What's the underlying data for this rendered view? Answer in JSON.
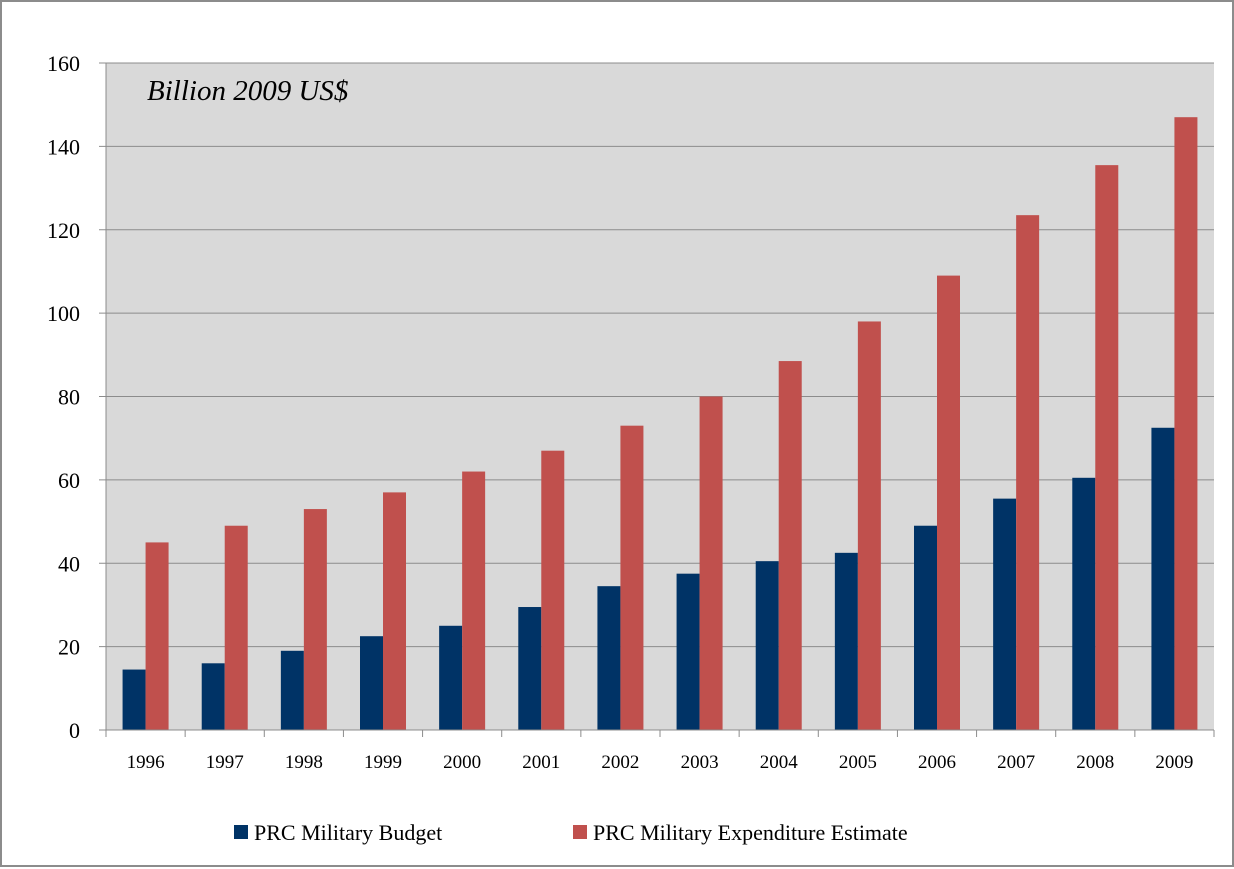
{
  "chart_data": {
    "type": "bar",
    "title": "",
    "unit_label": "Billion 2009 US$",
    "xlabel": "",
    "ylabel": "",
    "categories": [
      "1996",
      "1997",
      "1998",
      "1999",
      "2000",
      "2001",
      "2002",
      "2003",
      "2004",
      "2005",
      "2006",
      "2007",
      "2008",
      "2009"
    ],
    "series": [
      {
        "name": "PRC Military Budget",
        "color": "#003366",
        "values": [
          14.5,
          16,
          19,
          22.5,
          25,
          29.5,
          34.5,
          37.5,
          40.5,
          42.5,
          49,
          55.5,
          60.5,
          72.5
        ]
      },
      {
        "name": "PRC Military Expenditure Estimate",
        "color": "#c0504d",
        "values": [
          45,
          49,
          53,
          57,
          62,
          67,
          73,
          80,
          88.5,
          98,
          109,
          123.5,
          135.5,
          147
        ]
      }
    ],
    "ylim": [
      0,
      160
    ],
    "yticks": [
      "0",
      "20",
      "40",
      "60",
      "80",
      "100",
      "120",
      "140",
      "160"
    ],
    "grid": true,
    "plot_background": "#d9d9d9",
    "legend_position": "bottom"
  }
}
